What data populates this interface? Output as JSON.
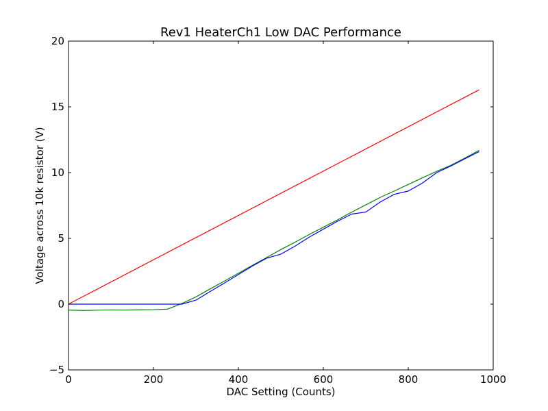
{
  "chart_data": {
    "type": "line",
    "title": "Rev1 HeaterCh1 Low DAC Performance",
    "xlabel": "DAC Setting (Counts)",
    "ylabel": "Voltage across 10k resistor (V)",
    "xlim": [
      0,
      1000
    ],
    "ylim": [
      -5,
      20
    ],
    "xticks": [
      0,
      200,
      400,
      600,
      800,
      1000
    ],
    "yticks": [
      -5,
      0,
      5,
      10,
      15,
      20
    ],
    "grid": false,
    "series": [
      {
        "color": "#ff0000",
        "points": [
          [
            0,
            0
          ],
          [
            967,
            16.3
          ]
        ]
      },
      {
        "color": "#008000",
        "points": [
          [
            0,
            -0.45
          ],
          [
            33,
            -0.48
          ],
          [
            67,
            -0.46
          ],
          [
            100,
            -0.44
          ],
          [
            133,
            -0.45
          ],
          [
            167,
            -0.43
          ],
          [
            200,
            -0.42
          ],
          [
            233,
            -0.38
          ],
          [
            267,
            0.05
          ],
          [
            300,
            0.55
          ],
          [
            333,
            1.15
          ],
          [
            367,
            1.75
          ],
          [
            400,
            2.35
          ],
          [
            433,
            2.95
          ],
          [
            467,
            3.55
          ],
          [
            500,
            4.15
          ],
          [
            533,
            4.7
          ],
          [
            567,
            5.3
          ],
          [
            600,
            5.85
          ],
          [
            633,
            6.4
          ],
          [
            667,
            7.0
          ],
          [
            700,
            7.55
          ],
          [
            733,
            8.1
          ],
          [
            767,
            8.6
          ],
          [
            800,
            9.1
          ],
          [
            833,
            9.6
          ],
          [
            867,
            10.1
          ],
          [
            900,
            10.55
          ],
          [
            933,
            11.1
          ],
          [
            967,
            11.7
          ]
        ]
      },
      {
        "color": "#0000ff",
        "points": [
          [
            0,
            0
          ],
          [
            33,
            0
          ],
          [
            67,
            0
          ],
          [
            100,
            0
          ],
          [
            133,
            0
          ],
          [
            167,
            0
          ],
          [
            200,
            0
          ],
          [
            233,
            0
          ],
          [
            267,
            0
          ],
          [
            300,
            0.3
          ],
          [
            333,
            0.95
          ],
          [
            367,
            1.6
          ],
          [
            400,
            2.25
          ],
          [
            433,
            2.9
          ],
          [
            467,
            3.5
          ],
          [
            500,
            3.8
          ],
          [
            533,
            4.4
          ],
          [
            567,
            5.1
          ],
          [
            600,
            5.7
          ],
          [
            633,
            6.3
          ],
          [
            667,
            6.85
          ],
          [
            700,
            7.0
          ],
          [
            733,
            7.75
          ],
          [
            767,
            8.35
          ],
          [
            800,
            8.6
          ],
          [
            833,
            9.2
          ],
          [
            867,
            10.0
          ],
          [
            900,
            10.5
          ],
          [
            933,
            11.05
          ],
          [
            967,
            11.6
          ]
        ]
      }
    ]
  }
}
